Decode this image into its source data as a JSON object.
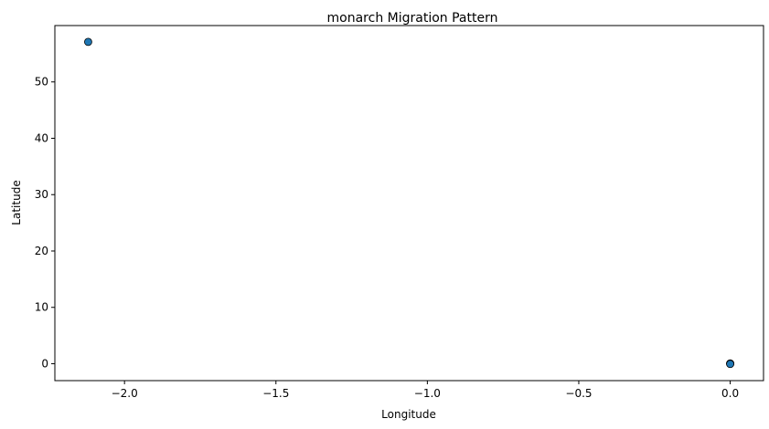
{
  "chart_data": {
    "type": "scatter",
    "title": "monarch Migration Pattern",
    "xlabel": "Longitude",
    "ylabel": "Latitude",
    "xlim": [
      -2.23,
      0.11
    ],
    "ylim": [
      -3,
      60
    ],
    "xticks": [
      -2.0,
      -1.5,
      -1.0,
      -0.5,
      0.0
    ],
    "xtick_labels": [
      "−2.0",
      "−1.5",
      "−1.0",
      "−0.5",
      "0.0"
    ],
    "yticks": [
      0,
      10,
      20,
      30,
      40,
      50
    ],
    "ytick_labels": [
      "0",
      "10",
      "20",
      "30",
      "40",
      "50"
    ],
    "grid": false,
    "points": [
      {
        "x": -2.12,
        "y": 57.1
      },
      {
        "x": 0.0,
        "y": 0.0
      },
      {
        "x": 0.0,
        "y": 0.05
      },
      {
        "x": 0.0,
        "y": -0.05
      }
    ],
    "marker_color": "#1f77b4",
    "marker_edge_color": "#000000"
  }
}
